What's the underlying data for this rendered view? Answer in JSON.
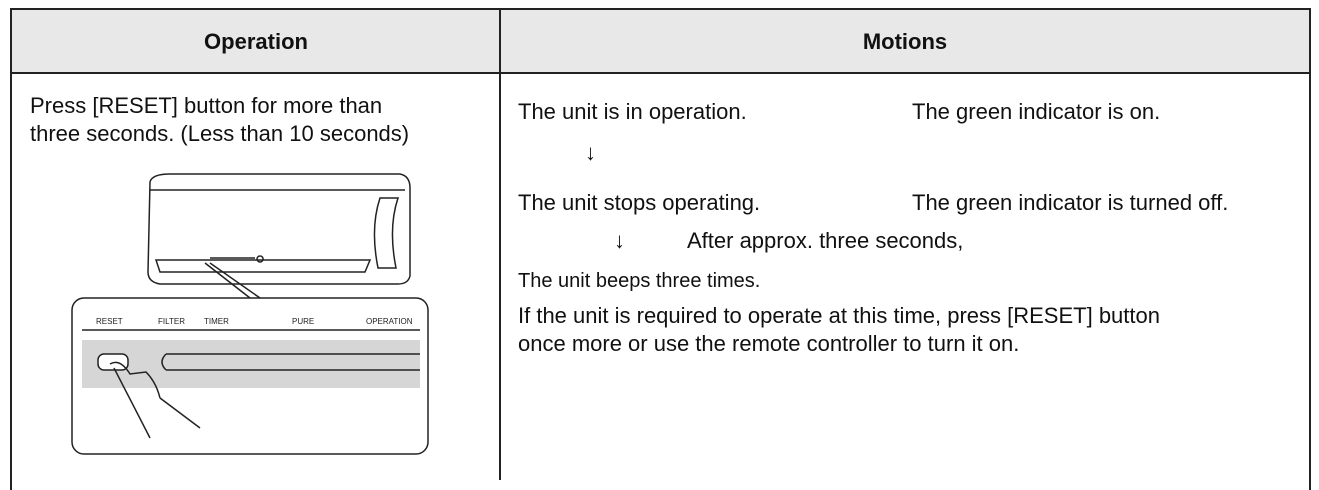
{
  "header": {
    "operation": "Operation",
    "motions": "Motions"
  },
  "operation": {
    "lines": [
      "Press [RESET] button for more than",
      "three seconds. (Less than 10 seconds)"
    ],
    "panel_labels": [
      "RESET",
      "FILTER",
      "TIMER",
      "PURE",
      "OPERATION"
    ]
  },
  "motions": {
    "row1": {
      "action": "The unit is in operation.",
      "indicator": "The green indicator is on."
    },
    "arrow1": "↓",
    "row2": {
      "action": "The unit stops operating.",
      "indicator": "The green indicator is turned off."
    },
    "arrow2": "↓",
    "delay": "After approx. three seconds,",
    "beep": "The unit beeps three times.",
    "note_lines": [
      "If the unit is required to operate at this time, press [RESET] button",
      "once more or use the remote controller to turn it on."
    ]
  }
}
